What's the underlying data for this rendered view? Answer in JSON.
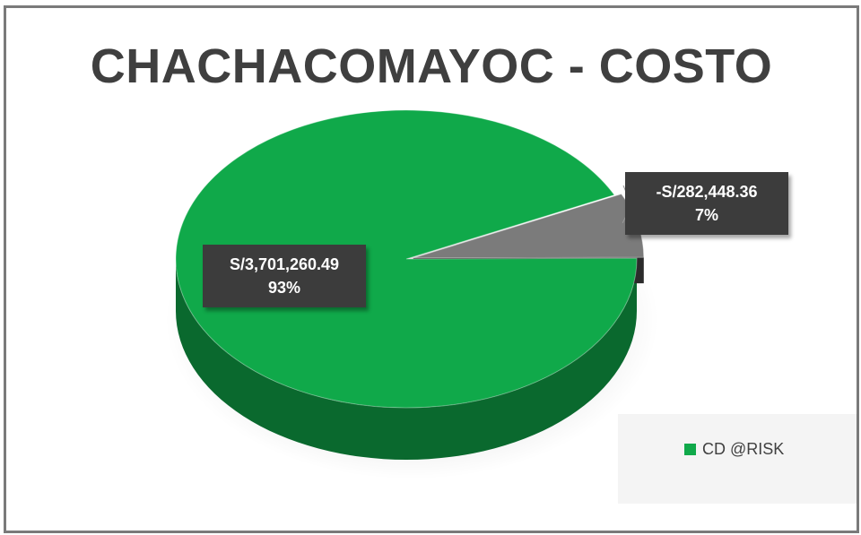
{
  "chart_data": {
    "type": "pie",
    "title": "CHACHACOMAYOC - COSTO",
    "slices": [
      {
        "value_label": "S/3,701,260.49",
        "percent_label": "93%",
        "value": 3701260.49,
        "percent": 93,
        "color": "#10a94a"
      },
      {
        "value_label": "-S/282,448.36",
        "percent_label": "7%",
        "value": -282448.36,
        "percent": 7,
        "color": "#7b7b7b"
      }
    ],
    "legend": {
      "placement": "bottom-right",
      "items": [
        {
          "label": "CD @RISK",
          "color": "#10a94a"
        }
      ]
    }
  }
}
